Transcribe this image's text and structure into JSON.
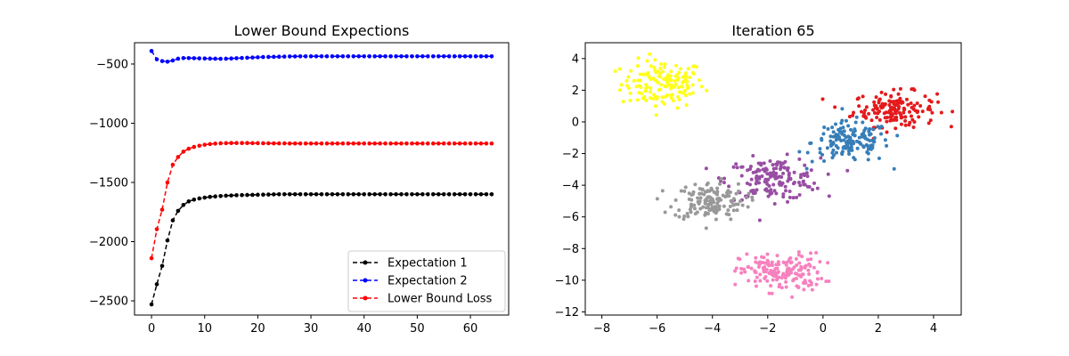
{
  "chart_data": [
    {
      "type": "line",
      "title": "Lower Bound Expections",
      "xlabel": "",
      "ylabel": "",
      "xlim": [
        -3.2,
        67.2
      ],
      "ylim": [
        -2620,
        -320
      ],
      "xticks": [
        0,
        10,
        20,
        30,
        40,
        50,
        60
      ],
      "yticks": [
        -2500,
        -2000,
        -1500,
        -1000,
        -500
      ],
      "tick_labels": {
        "x": [
          "0",
          "10",
          "20",
          "30",
          "40",
          "50",
          "60"
        ],
        "y": [
          "−2500",
          "−2000",
          "−1500",
          "−1000",
          "−500"
        ]
      },
      "grid": false,
      "legend_position": "lower-right",
      "series": [
        {
          "name": "Expectation 1",
          "color": "#000000",
          "x": [
            0,
            1,
            2,
            3,
            4,
            5,
            6,
            7,
            8,
            9,
            10,
            11,
            12,
            13,
            14,
            15,
            16,
            17,
            18,
            19,
            20,
            21,
            22,
            23,
            24,
            25,
            26,
            27,
            28,
            29,
            30,
            31,
            32,
            33,
            34,
            35,
            36,
            37,
            38,
            39,
            40,
            41,
            42,
            43,
            44,
            45,
            46,
            47,
            48,
            49,
            50,
            51,
            52,
            53,
            54,
            55,
            56,
            57,
            58,
            59,
            60,
            61,
            62,
            63,
            64
          ],
          "values": [
            -2530,
            -2360,
            -2205,
            -1990,
            -1820,
            -1740,
            -1690,
            -1660,
            -1645,
            -1635,
            -1628,
            -1622,
            -1618,
            -1615,
            -1612,
            -1610,
            -1608,
            -1607,
            -1606,
            -1605,
            -1604,
            -1603,
            -1602,
            -1601,
            -1600,
            -1600,
            -1600,
            -1600,
            -1600,
            -1600,
            -1600,
            -1600,
            -1600,
            -1600,
            -1600,
            -1600,
            -1600,
            -1600,
            -1600,
            -1600,
            -1600,
            -1600,
            -1600,
            -1600,
            -1600,
            -1600,
            -1600,
            -1600,
            -1600,
            -1600,
            -1600,
            -1600,
            -1600,
            -1600,
            -1600,
            -1600,
            -1600,
            -1600,
            -1600,
            -1600,
            -1600,
            -1600,
            -1600,
            -1600,
            -1600
          ]
        },
        {
          "name": "Expectation 2",
          "color": "#0000ff",
          "x": [
            0,
            1,
            2,
            3,
            4,
            5,
            6,
            7,
            8,
            9,
            10,
            11,
            12,
            13,
            14,
            15,
            16,
            17,
            18,
            19,
            20,
            21,
            22,
            23,
            24,
            25,
            26,
            27,
            28,
            29,
            30,
            31,
            32,
            33,
            34,
            35,
            36,
            37,
            38,
            39,
            40,
            41,
            42,
            43,
            44,
            45,
            46,
            47,
            48,
            49,
            50,
            51,
            52,
            53,
            54,
            55,
            56,
            57,
            58,
            59,
            60,
            61,
            62,
            63,
            64
          ],
          "values": [
            -390,
            -460,
            -475,
            -480,
            -470,
            -455,
            -450,
            -450,
            -451,
            -452,
            -453,
            -454,
            -455,
            -456,
            -455,
            -453,
            -451,
            -449,
            -447,
            -445,
            -443,
            -441,
            -440,
            -439,
            -438,
            -437,
            -436,
            -436,
            -435,
            -435,
            -435,
            -435,
            -435,
            -435,
            -435,
            -435,
            -435,
            -435,
            -435,
            -435,
            -435,
            -435,
            -435,
            -435,
            -435,
            -435,
            -435,
            -435,
            -435,
            -435,
            -435,
            -435,
            -435,
            -435,
            -435,
            -435,
            -435,
            -435,
            -435,
            -435,
            -435,
            -435,
            -435,
            -435,
            -435
          ]
        },
        {
          "name": "Lower Bound Loss",
          "color": "#ff0000",
          "x": [
            0,
            1,
            2,
            3,
            4,
            5,
            6,
            7,
            8,
            9,
            10,
            11,
            12,
            13,
            14,
            15,
            16,
            17,
            18,
            19,
            20,
            21,
            22,
            23,
            24,
            25,
            26,
            27,
            28,
            29,
            30,
            31,
            32,
            33,
            34,
            35,
            36,
            37,
            38,
            39,
            40,
            41,
            42,
            43,
            44,
            45,
            46,
            47,
            48,
            49,
            50,
            51,
            52,
            53,
            54,
            55,
            56,
            57,
            58,
            59,
            60,
            61,
            62,
            63,
            64
          ],
          "values": [
            -2140,
            -1895,
            -1730,
            -1500,
            -1350,
            -1285,
            -1240,
            -1215,
            -1200,
            -1190,
            -1182,
            -1176,
            -1172,
            -1169,
            -1168,
            -1167,
            -1167,
            -1167,
            -1167,
            -1168,
            -1168,
            -1169,
            -1169,
            -1170,
            -1170,
            -1170,
            -1171,
            -1171,
            -1171,
            -1171,
            -1171,
            -1171,
            -1171,
            -1171,
            -1171,
            -1171,
            -1171,
            -1171,
            -1171,
            -1171,
            -1171,
            -1171,
            -1171,
            -1171,
            -1171,
            -1171,
            -1171,
            -1171,
            -1171,
            -1171,
            -1171,
            -1171,
            -1171,
            -1171,
            -1171,
            -1171,
            -1171,
            -1171,
            -1171,
            -1171,
            -1171,
            -1171,
            -1171,
            -1171,
            -1171
          ]
        }
      ]
    },
    {
      "type": "scatter",
      "title": "Iteration 65",
      "xlabel": "",
      "ylabel": "",
      "xlim": [
        -8.6,
        5.0
      ],
      "ylim": [
        -12.2,
        5.0
      ],
      "xticks": [
        -8,
        -6,
        -4,
        -2,
        0,
        2,
        4
      ],
      "yticks": [
        -12,
        -10,
        -8,
        -6,
        -4,
        -2,
        0,
        2,
        4
      ],
      "tick_labels": {
        "x": [
          "−8",
          "−6",
          "−4",
          "−2",
          "0",
          "2",
          "4"
        ],
        "y": [
          "−12",
          "−10",
          "−8",
          "−6",
          "−4",
          "−2",
          "0",
          "2",
          "4"
        ]
      },
      "grid": false,
      "clusters": [
        {
          "color": "#ffff1a",
          "center": [
            -5.8,
            2.4
          ],
          "spread": [
            0.75,
            0.75
          ],
          "count": 150
        },
        {
          "color": "#e41a1c",
          "center": [
            2.6,
            0.8
          ],
          "spread": [
            0.75,
            0.55
          ],
          "count": 160
        },
        {
          "color": "#377eb8",
          "center": [
            1.0,
            -1.3
          ],
          "spread": [
            0.7,
            0.65
          ],
          "count": 150
        },
        {
          "color": "#984ea3",
          "center": [
            -1.8,
            -3.6
          ],
          "spread": [
            0.85,
            0.65
          ],
          "count": 160
        },
        {
          "color": "#999999",
          "center": [
            -4.1,
            -5.0
          ],
          "spread": [
            0.65,
            0.6
          ],
          "count": 150
        },
        {
          "color": "#f781bf",
          "center": [
            -1.5,
            -9.5
          ],
          "spread": [
            0.75,
            0.6
          ],
          "count": 170
        }
      ]
    }
  ]
}
